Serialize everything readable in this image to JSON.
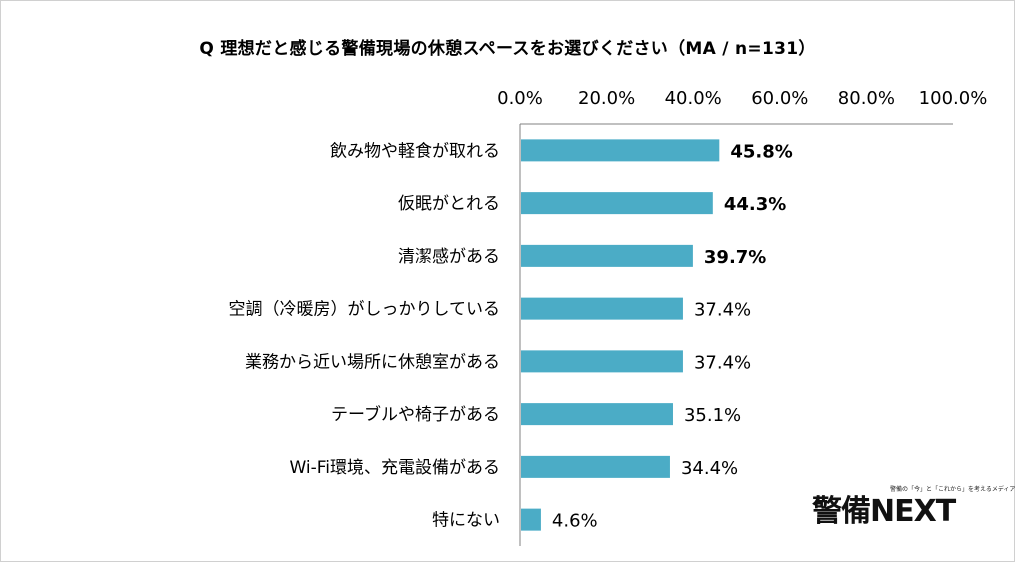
{
  "chart_data": {
    "type": "bar",
    "orientation": "horizontal",
    "title": "Q 理想だと感じる警備現場の休憩スペースをお選びください（MA / n=131）",
    "categories": [
      "飲み物や軽食が取れる",
      "仮眠がとれる",
      "清潔感がある",
      "空調（冷暖房）がしっかりしている",
      "業務から近い場所に休憩室がある",
      "テーブルや椅子がある",
      "Wi-Fi環境、充電設備がある",
      "特にない"
    ],
    "values": [
      45.8,
      44.3,
      39.7,
      37.4,
      37.4,
      35.1,
      34.4,
      4.6
    ],
    "value_labels": [
      "45.8%",
      "44.3%",
      "39.7%",
      "37.4%",
      "37.4%",
      "35.1%",
      "34.4%",
      "4.6%"
    ],
    "bold_labels": [
      true,
      true,
      true,
      false,
      false,
      false,
      false,
      false
    ],
    "xlim": [
      0,
      100
    ],
    "xticks": [
      0,
      20,
      40,
      60,
      80,
      100
    ],
    "xtick_labels": [
      "0.0%",
      "20.0%",
      "40.0%",
      "60.0%",
      "80.0%",
      "100.0%"
    ],
    "axis_position": "top",
    "grid": false,
    "bar_color": "#4bacc6"
  },
  "logo": {
    "main": "警備NEXT",
    "tagline": "警備の「今」と「これから」を考えるメディア"
  }
}
